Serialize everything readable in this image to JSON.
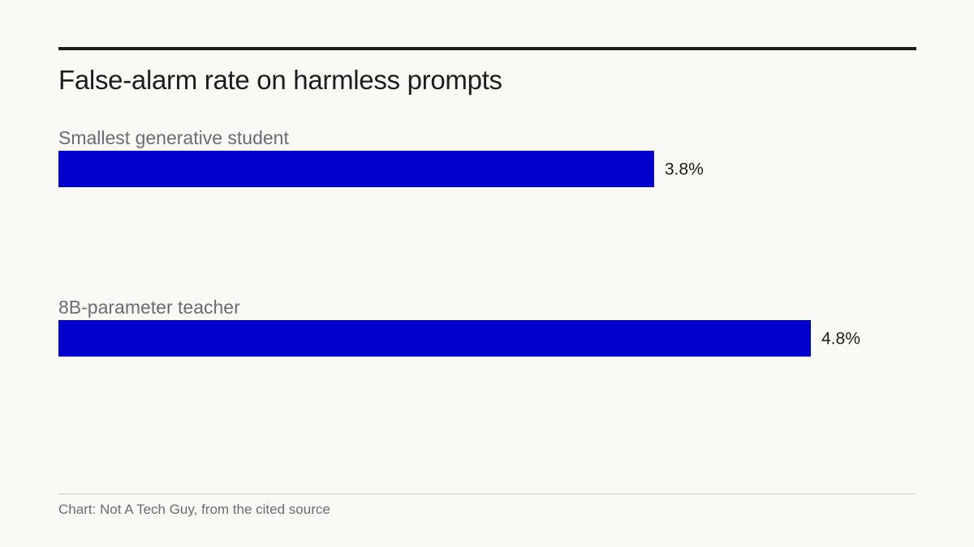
{
  "chart_data": {
    "type": "bar",
    "orientation": "horizontal",
    "title": "False-alarm rate on harmless prompts",
    "categories": [
      "Smallest generative student",
      "8B-parameter teacher"
    ],
    "values": [
      3.8,
      4.8
    ],
    "value_labels": [
      "3.8%",
      "4.8%"
    ],
    "unit": "%",
    "bar_color": "#0000cc",
    "grid": false,
    "legend": "none"
  },
  "footer": {
    "source": "Chart: Not A Tech Guy, from the cited source"
  },
  "colors": {
    "background": "#f9f9f6",
    "text": "#1d1d1d",
    "muted": "#6b6b72"
  }
}
